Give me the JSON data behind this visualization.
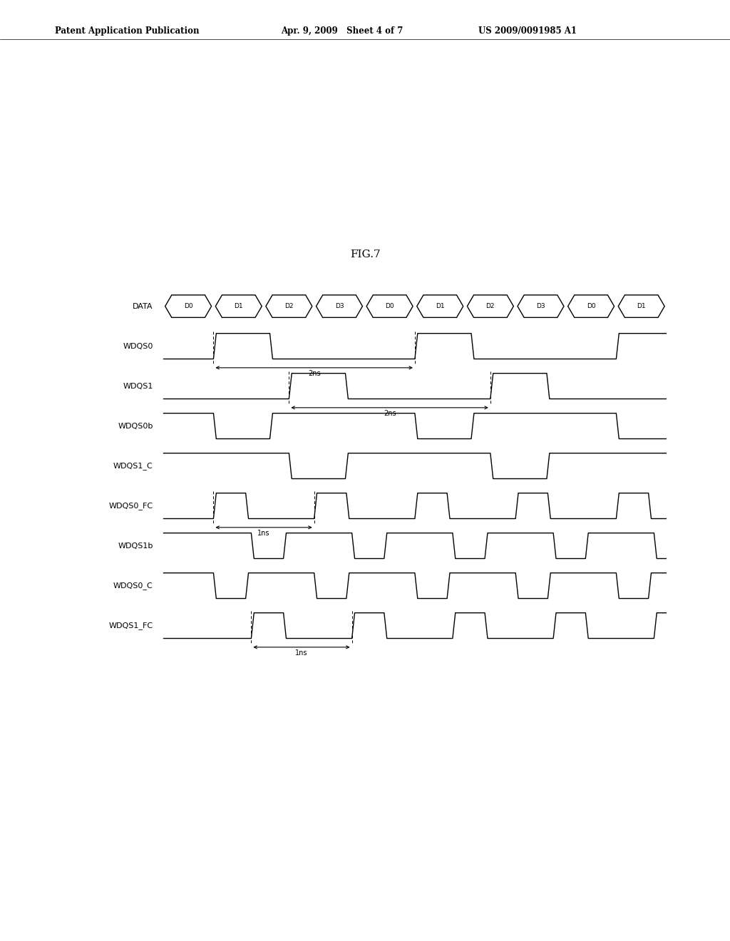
{
  "title": "FIG.7",
  "header_left": "Patent Application Publication",
  "header_mid": "Apr. 9, 2009   Sheet 4 of 7",
  "header_right": "US 2009/0091985 A1",
  "data_labels": [
    "D0",
    "D1",
    "D2",
    "D3",
    "D0",
    "D1",
    "D2",
    "D3",
    "D0",
    "D1"
  ],
  "signal_names": [
    "DATA",
    "WDQS0",
    "WDQS1",
    "WDQS0b",
    "WDQS1_C",
    "WDQS0_FC",
    "WDQS1b",
    "WDQS0_C",
    "WDQS1_FC"
  ],
  "background_color": "#ffffff",
  "label_fontsize": 8,
  "title_fontsize": 11,
  "header_fontsize": 8.5,
  "line_width": 1.0
}
